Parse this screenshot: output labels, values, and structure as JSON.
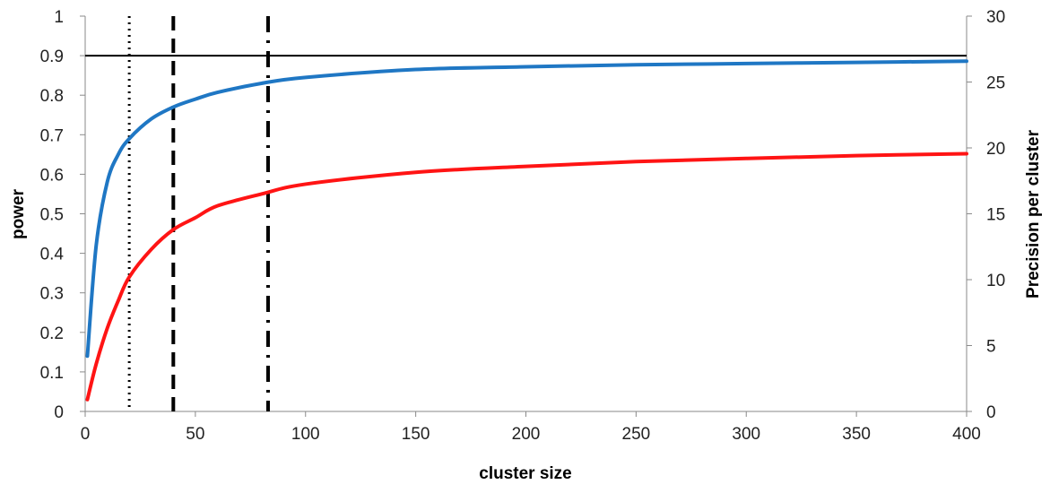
{
  "chart_data": {
    "type": "line",
    "title": "",
    "xlabel": "cluster size",
    "ylabel": "power",
    "y2label": "Precision per cluster",
    "xlim": [
      0,
      400
    ],
    "ylim": [
      0,
      1
    ],
    "y2lim": [
      0,
      30
    ],
    "xticks": [
      "0",
      "50",
      "100",
      "150",
      "200",
      "250",
      "300",
      "350",
      "400"
    ],
    "yticks": [
      "0",
      "0.1",
      "0.2",
      "0.3",
      "0.4",
      "0.5",
      "0.6",
      "0.7",
      "0.8",
      "0.9",
      "1"
    ],
    "y2ticks": [
      "0",
      "5",
      "10",
      "15",
      "20",
      "25",
      "30"
    ],
    "grid": false,
    "legend": "none",
    "series": [
      {
        "color": "#1f77c4",
        "axis": "left",
        "x": [
          1,
          5,
          10,
          15,
          20,
          30,
          40,
          50,
          60,
          80,
          100,
          150,
          200,
          250,
          300,
          350,
          400
        ],
        "values": [
          0.14,
          0.42,
          0.58,
          0.65,
          0.69,
          0.74,
          0.77,
          0.79,
          0.807,
          0.83,
          0.845,
          0.865,
          0.872,
          0.877,
          0.88,
          0.883,
          0.886
        ]
      },
      {
        "color": "#ff1414",
        "axis": "left",
        "x": [
          1,
          5,
          10,
          15,
          20,
          30,
          40,
          50,
          60,
          80,
          100,
          150,
          200,
          250,
          300,
          350,
          400
        ],
        "values": [
          0.03,
          0.12,
          0.21,
          0.28,
          0.34,
          0.41,
          0.46,
          0.49,
          0.52,
          0.55,
          0.575,
          0.605,
          0.62,
          0.632,
          0.64,
          0.647,
          0.652
        ]
      }
    ],
    "reference_lines": [
      {
        "orientation": "horizontal",
        "y": 0.9,
        "style": "solid"
      },
      {
        "orientation": "vertical",
        "x": 20,
        "style": "dotted"
      },
      {
        "orientation": "vertical",
        "x": 40,
        "style": "dashed"
      },
      {
        "orientation": "vertical",
        "x": 83,
        "style": "dash-dot"
      }
    ]
  }
}
